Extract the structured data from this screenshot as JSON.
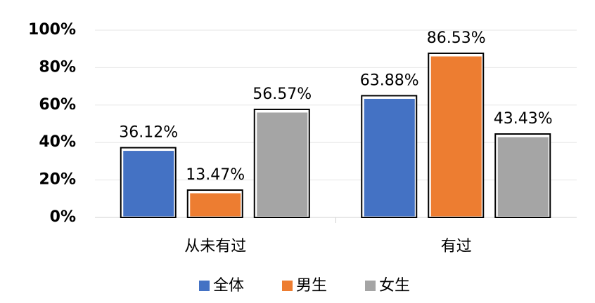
{
  "chart_data": {
    "type": "bar",
    "categories": [
      "从未有过",
      "有过"
    ],
    "series": [
      {
        "name": "全体",
        "color": "#4472c4",
        "values": [
          36.12,
          63.88
        ],
        "value_labels": [
          "36.12%",
          "63.88%"
        ]
      },
      {
        "name": "男生",
        "color": "#ed7d31",
        "values": [
          13.47,
          86.53
        ],
        "value_labels": [
          "13.47%",
          "86.53%"
        ]
      },
      {
        "name": "女生",
        "color": "#a5a5a5",
        "values": [
          56.57,
          43.43
        ],
        "value_labels": [
          "56.57%",
          "43.43%"
        ]
      }
    ],
    "ylim": [
      0,
      100
    ],
    "yticks": [
      {
        "value": 0,
        "label": "0%"
      },
      {
        "value": 20,
        "label": "20%"
      },
      {
        "value": 40,
        "label": "40%"
      },
      {
        "value": 60,
        "label": "60%"
      },
      {
        "value": 80,
        "label": "80%"
      },
      {
        "value": 100,
        "label": "100%"
      }
    ],
    "grid": true,
    "legend": "bottom"
  }
}
